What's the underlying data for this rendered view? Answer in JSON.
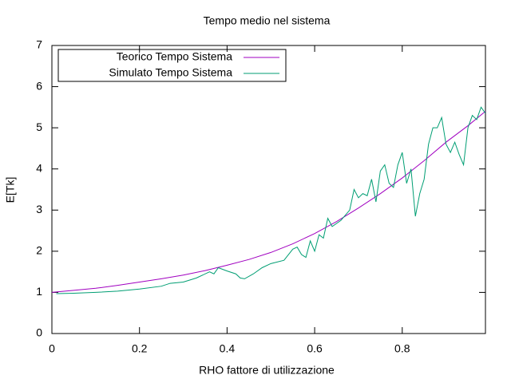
{
  "chart_data": {
    "type": "line",
    "title": "Tempo medio nel sistema",
    "x_label": "RHO fattore di utilizzazione",
    "y_label": "E[Tk]",
    "xlim": [
      0,
      0.99
    ],
    "ylim": [
      0,
      7
    ],
    "xticks": [
      0,
      0.2,
      0.4,
      0.6,
      0.8
    ],
    "yticks": [
      0,
      1,
      2,
      3,
      4,
      5,
      6,
      7
    ],
    "legend": "top-left",
    "series": [
      {
        "name": "Teorico Tempo Sistema",
        "color": "#a000c0",
        "x": [
          0,
          0.05,
          0.1,
          0.15,
          0.2,
          0.25,
          0.3,
          0.35,
          0.4,
          0.45,
          0.5,
          0.55,
          0.6,
          0.65,
          0.7,
          0.75,
          0.8,
          0.85,
          0.9,
          0.95,
          0.99
        ],
        "values": [
          1.0,
          1.05,
          1.1,
          1.17,
          1.25,
          1.33,
          1.42,
          1.53,
          1.66,
          1.8,
          1.97,
          2.18,
          2.43,
          2.72,
          3.05,
          3.4,
          3.78,
          4.2,
          4.65,
          5.05,
          5.4
        ]
      },
      {
        "name": "Simulato Tempo Sistema",
        "color": "#009e73",
        "x": [
          0.01,
          0.05,
          0.1,
          0.15,
          0.2,
          0.25,
          0.27,
          0.3,
          0.33,
          0.36,
          0.37,
          0.38,
          0.4,
          0.42,
          0.43,
          0.44,
          0.46,
          0.48,
          0.5,
          0.53,
          0.55,
          0.56,
          0.57,
          0.58,
          0.59,
          0.6,
          0.61,
          0.62,
          0.63,
          0.64,
          0.66,
          0.68,
          0.69,
          0.7,
          0.71,
          0.72,
          0.73,
          0.74,
          0.75,
          0.76,
          0.77,
          0.78,
          0.79,
          0.8,
          0.81,
          0.82,
          0.83,
          0.84,
          0.85,
          0.86,
          0.87,
          0.88,
          0.89,
          0.9,
          0.91,
          0.92,
          0.93,
          0.94,
          0.95,
          0.96,
          0.97,
          0.98,
          0.99
        ],
        "values": [
          0.97,
          0.98,
          1.0,
          1.03,
          1.08,
          1.15,
          1.22,
          1.25,
          1.35,
          1.5,
          1.45,
          1.6,
          1.52,
          1.45,
          1.35,
          1.33,
          1.45,
          1.6,
          1.7,
          1.78,
          2.05,
          2.1,
          1.92,
          1.85,
          2.25,
          2.0,
          2.4,
          2.32,
          2.8,
          2.6,
          2.75,
          3.0,
          3.5,
          3.3,
          3.4,
          3.35,
          3.75,
          3.2,
          3.95,
          4.1,
          3.65,
          3.55,
          4.1,
          4.4,
          3.65,
          4.0,
          2.85,
          3.4,
          3.75,
          4.6,
          5.0,
          5.0,
          5.25,
          4.6,
          4.4,
          4.65,
          4.35,
          4.1,
          5.0,
          5.3,
          5.2,
          5.5,
          5.35
        ]
      }
    ]
  }
}
